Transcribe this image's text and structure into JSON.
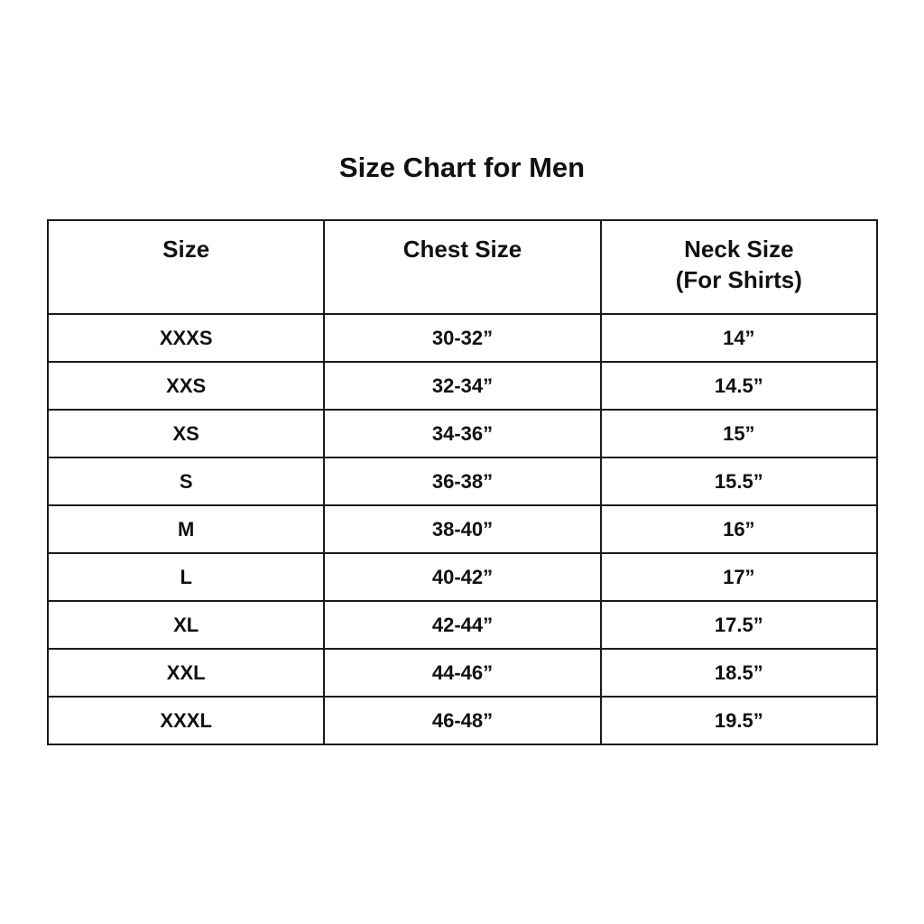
{
  "title": "Size Chart for Men",
  "columns": [
    "Size",
    "Chest Size",
    "Neck Size",
    "(For Shirts)"
  ],
  "rows": [
    [
      "XXXS",
      "30-32”",
      "14”"
    ],
    [
      "XXS",
      "32-34”",
      "14.5”"
    ],
    [
      "XS",
      "34-36”",
      "15”"
    ],
    [
      "S",
      "36-38”",
      "15.5”"
    ],
    [
      "M",
      "38-40”",
      "16”"
    ],
    [
      "L",
      "40-42”",
      "17”"
    ],
    [
      "XL",
      "42-44”",
      "17.5”"
    ],
    [
      "XXL",
      "44-46”",
      "18.5”"
    ],
    [
      "XXXL",
      "46-48”",
      "19.5”"
    ]
  ]
}
